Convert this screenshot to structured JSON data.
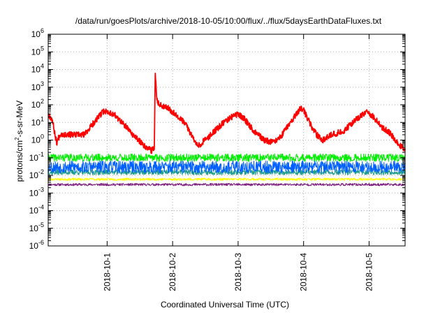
{
  "chart_data": {
    "type": "line",
    "title": "/data/run/goesPlots/archive/2018-10-05/10:00/flux/../flux/5daysEarthDataFluxes.txt",
    "xlabel": "Coordinated Universal Time (UTC)",
    "ylabel": {
      "base": "protons/cm",
      "sup": "2",
      "rest": "-s-sr-MeV"
    },
    "log_y": true,
    "grid": true,
    "x_domain_days": [
      0,
      5.45
    ],
    "xlim": [
      "2018-09-30 02:24",
      "2018-10-05 13:12"
    ],
    "ylim": [
      1e-06,
      1000000.0
    ],
    "x_ticks": [
      {
        "at": 0.9,
        "label": "2018-10-1"
      },
      {
        "at": 1.9,
        "label": "2018-10-2"
      },
      {
        "at": 2.9,
        "label": "2018-10-3"
      },
      {
        "at": 3.9,
        "label": "2018-10-4"
      },
      {
        "at": 4.9,
        "label": "2018-10-5"
      }
    ],
    "y_ticks": [
      {
        "exp": -6,
        "base": "10",
        "sup": "-6"
      },
      {
        "exp": -5,
        "base": "10",
        "sup": "-5"
      },
      {
        "exp": -4,
        "base": "10",
        "sup": "-4"
      },
      {
        "exp": -3,
        "base": "10",
        "sup": "-3"
      },
      {
        "exp": -2,
        "base": "10",
        "sup": "-2"
      },
      {
        "exp": -1,
        "base": "10",
        "sup": "-1"
      },
      {
        "exp": 0,
        "base": "10",
        "sup": "0"
      },
      {
        "exp": 1,
        "base": "10",
        "sup": "1"
      },
      {
        "exp": 2,
        "base": "10",
        "sup": "2"
      },
      {
        "exp": 3,
        "base": "10",
        "sup": "3"
      },
      {
        "exp": 4,
        "base": "10",
        "sup": "4"
      },
      {
        "exp": 5,
        "base": "10",
        "sup": "5"
      },
      {
        "exp": 6,
        "base": "10",
        "sup": "6"
      }
    ],
    "series": [
      {
        "color": "#7f1f7f",
        "noise": 0.07,
        "seed": 11,
        "points": [
          [
            0,
            0.003
          ],
          [
            5.45,
            0.003
          ]
        ]
      },
      {
        "color": "#ffff00",
        "noise": 0.07,
        "seed": 23,
        "points": [
          [
            0,
            0.006
          ],
          [
            5.45,
            0.006
          ]
        ]
      },
      {
        "color": "#1e9c8c",
        "noise": 0.15,
        "seed": 37,
        "points": [
          [
            0,
            0.015
          ],
          [
            5.45,
            0.015
          ]
        ]
      },
      {
        "color": "#00ee00",
        "noise": 0.22,
        "seed": 41,
        "points": [
          [
            0,
            0.1
          ],
          [
            5.45,
            0.1
          ]
        ]
      },
      {
        "color": "#0060ff",
        "noise": 0.35,
        "seed": 53,
        "points": [
          [
            0,
            0.03
          ],
          [
            5.45,
            0.03
          ]
        ]
      },
      {
        "color": "#ff0000",
        "noise": 0.17,
        "seed": 67,
        "width": 1.8,
        "points": [
          [
            0,
            30
          ],
          [
            0.06,
            15
          ],
          [
            0.1,
            2.5
          ],
          [
            0.13,
            0.7
          ],
          [
            0.18,
            2.2
          ],
          [
            0.35,
            2.0
          ],
          [
            0.55,
            2.0
          ],
          [
            0.7,
            10
          ],
          [
            0.85,
            45
          ],
          [
            1.0,
            30
          ],
          [
            1.2,
            5
          ],
          [
            1.35,
            1.2
          ],
          [
            1.5,
            0.4
          ],
          [
            1.58,
            0.25
          ],
          [
            1.62,
            0.4
          ],
          [
            1.635,
            5000
          ],
          [
            1.66,
            200
          ],
          [
            1.7,
            100
          ],
          [
            1.8,
            80
          ],
          [
            1.9,
            40
          ],
          [
            2.0,
            20
          ],
          [
            2.1,
            8
          ],
          [
            2.2,
            1.5
          ],
          [
            2.3,
            0.5
          ],
          [
            2.45,
            1.5
          ],
          [
            2.65,
            8
          ],
          [
            2.8,
            20
          ],
          [
            2.9,
            30
          ],
          [
            3.0,
            15
          ],
          [
            3.15,
            3
          ],
          [
            3.3,
            1
          ],
          [
            3.45,
            0.7
          ],
          [
            3.55,
            1.5
          ],
          [
            3.7,
            10
          ],
          [
            3.85,
            60
          ],
          [
            3.9,
            50
          ],
          [
            4.0,
            8
          ],
          [
            4.1,
            2
          ],
          [
            4.2,
            1
          ],
          [
            4.3,
            2
          ],
          [
            4.5,
            3
          ],
          [
            4.65,
            10
          ],
          [
            4.85,
            40
          ],
          [
            4.95,
            25
          ],
          [
            5.1,
            5
          ],
          [
            5.2,
            3
          ],
          [
            5.3,
            1
          ],
          [
            5.4,
            0.4
          ],
          [
            5.45,
            0.3
          ]
        ]
      }
    ]
  }
}
